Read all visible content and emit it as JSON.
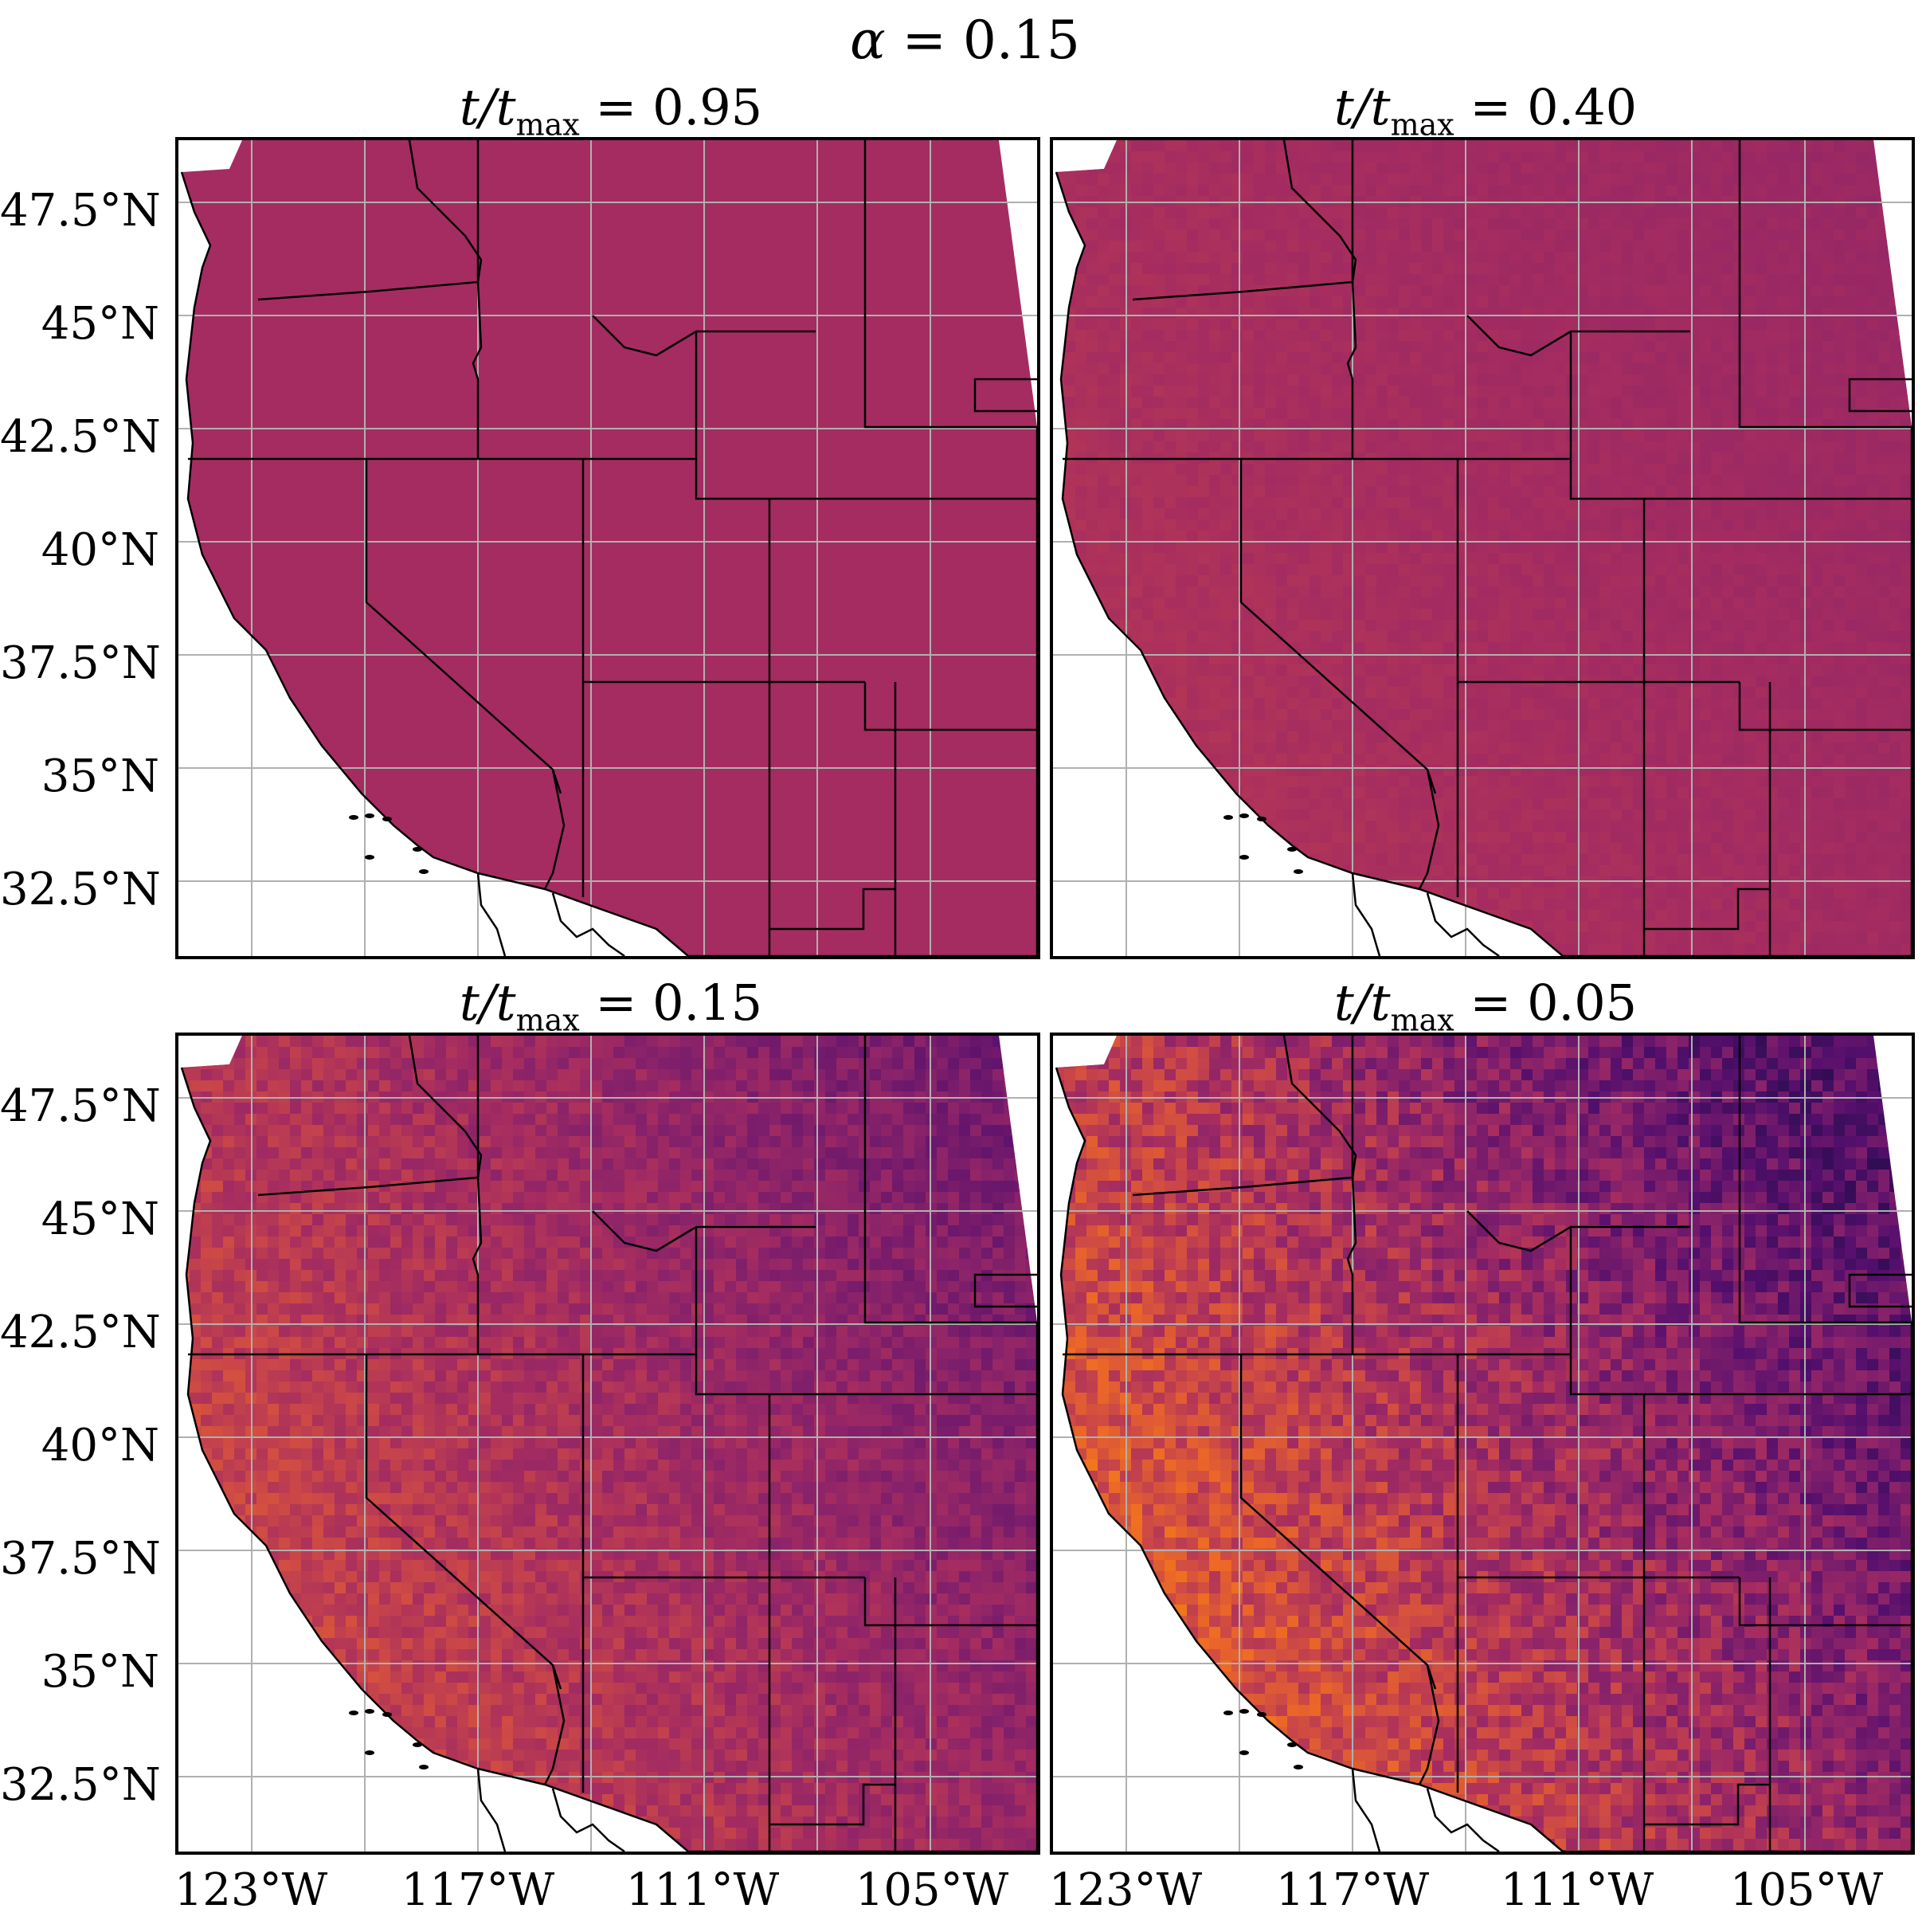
{
  "figure": {
    "suptitle_symbol": "α",
    "suptitle_rest": " = 0.15",
    "panel_prefix": "t/t",
    "panel_sub": "max"
  },
  "panels": [
    {
      "ratio": " = 0.95",
      "intensity": 0.5
    },
    {
      "ratio": " = 0.40",
      "intensity": 0.46
    },
    {
      "ratio": " = 0.15",
      "intensity": 0.42
    },
    {
      "ratio": " = 0.05",
      "intensity": 0.4
    }
  ],
  "axes": {
    "y_ticks": [
      "47.5°N",
      "45°N",
      "42.5°N",
      "40°N",
      "37.5°N",
      "35°N",
      "32.5°N"
    ],
    "x_ticks": [
      "123°W",
      "117°W",
      "111°W",
      "105°W"
    ]
  },
  "colors": {
    "uniform": "#a52c60",
    "colormap": "inferno",
    "grid": "#b0b0b0",
    "border": "#000000"
  }
}
